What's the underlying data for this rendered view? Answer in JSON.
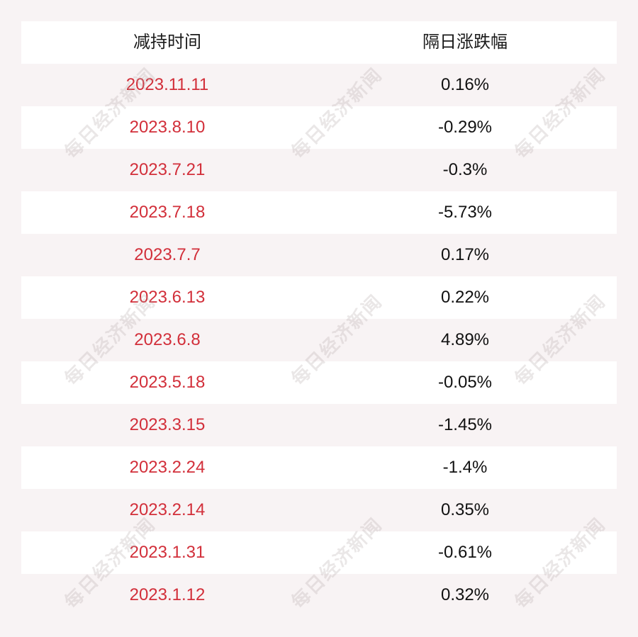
{
  "table": {
    "headers": [
      "减持时间",
      "隔日涨跌幅"
    ],
    "rows": [
      {
        "date": "2023.11.11",
        "change": "0.16%"
      },
      {
        "date": "2023.8.10",
        "change": "-0.29%"
      },
      {
        "date": "2023.7.21",
        "change": "-0.3%"
      },
      {
        "date": "2023.7.18",
        "change": "-5.73%"
      },
      {
        "date": "2023.7.7",
        "change": "0.17%"
      },
      {
        "date": "2023.6.13",
        "change": "0.22%"
      },
      {
        "date": "2023.6.8",
        "change": "4.89%"
      },
      {
        "date": "2023.5.18",
        "change": "-0.05%"
      },
      {
        "date": "2023.3.15",
        "change": "-1.45%"
      },
      {
        "date": "2023.2.24",
        "change": "-1.4%"
      },
      {
        "date": "2023.2.14",
        "change": "0.35%"
      },
      {
        "date": "2023.1.31",
        "change": "-0.61%"
      },
      {
        "date": "2023.1.12",
        "change": "0.32%"
      }
    ]
  },
  "watermark": {
    "text": "每日经济新闻"
  },
  "colors": {
    "date_text": "#d22f3a",
    "value_text": "#111111",
    "stripe_white": "#ffffff",
    "stripe_pink": "#f8f3f4"
  }
}
